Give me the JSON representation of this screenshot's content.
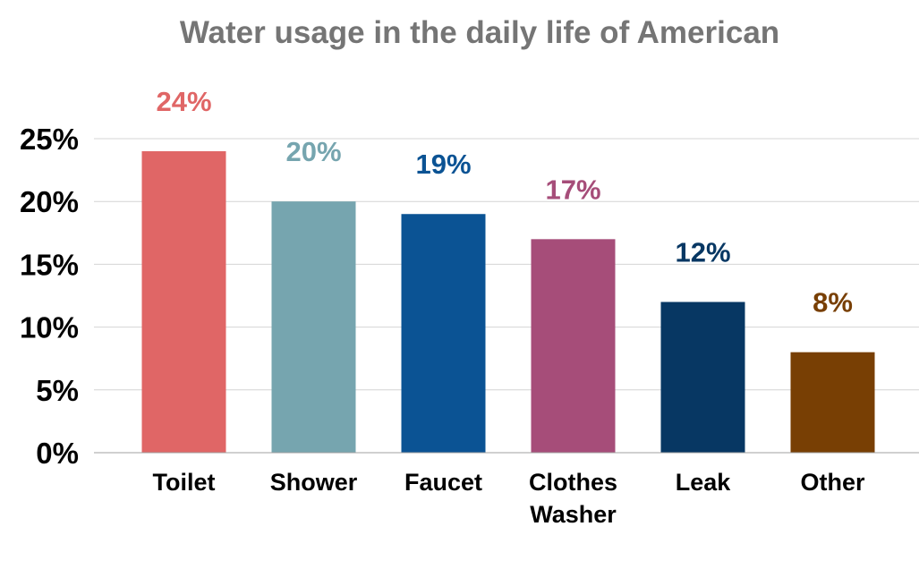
{
  "chart_data": {
    "type": "bar",
    "title": "Water usage in the daily life of American",
    "xlabel": "",
    "ylabel": "",
    "ylim": [
      0,
      25
    ],
    "yticks": [
      {
        "value": 0,
        "label": "0%"
      },
      {
        "value": 5,
        "label": "5%"
      },
      {
        "value": 10,
        "label": "10%"
      },
      {
        "value": 15,
        "label": "15%"
      },
      {
        "value": 20,
        "label": "20%"
      },
      {
        "value": 25,
        "label": "25%"
      }
    ],
    "grid": true,
    "legend": "none",
    "categories": [
      [
        "Toilet"
      ],
      [
        "Shower"
      ],
      [
        "Faucet"
      ],
      [
        "Clothes",
        "Washer"
      ],
      [
        "Leak"
      ],
      [
        "Other"
      ]
    ],
    "values": [
      24,
      20,
      19,
      17,
      12,
      8
    ],
    "data_labels": [
      "24%",
      "20%",
      "19%",
      "17%",
      "12%",
      "8%"
    ],
    "colors": [
      "#e06666",
      "#76a5af",
      "#0b5394",
      "#a64d79",
      "#073763",
      "#783f04"
    ]
  }
}
